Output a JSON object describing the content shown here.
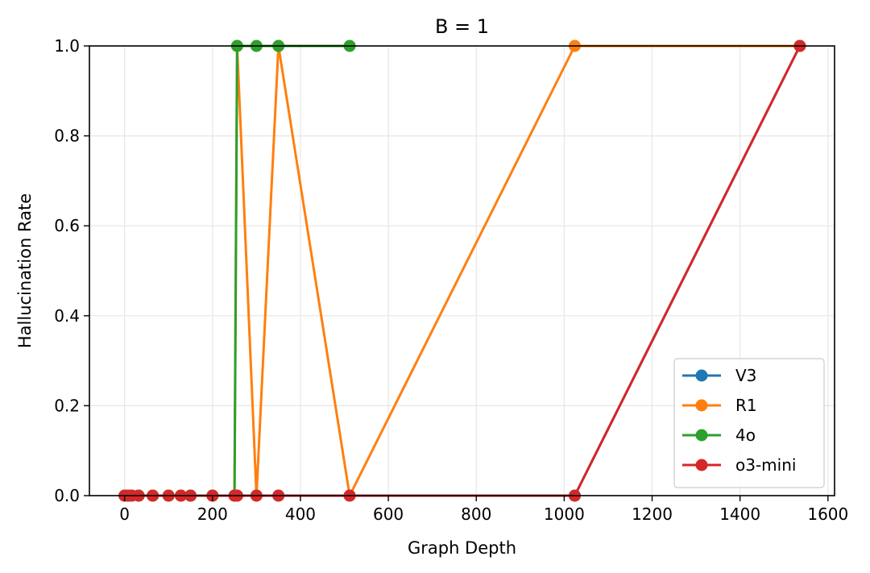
{
  "chart_data": {
    "type": "line",
    "title": "B = 1",
    "xlabel": "Graph Depth",
    "ylabel": "Hallucination Rate",
    "xlim": [
      -80,
      1615
    ],
    "ylim": [
      0.0,
      1.0
    ],
    "xticks": [
      0,
      200,
      400,
      600,
      800,
      1000,
      1200,
      1400,
      1600
    ],
    "yticks": [
      0.0,
      0.2,
      0.4,
      0.6,
      0.8,
      1.0
    ],
    "ytick_labels": [
      "0.0",
      "0.2",
      "0.4",
      "0.6",
      "0.8",
      "1.0"
    ],
    "grid": true,
    "legend_position": "lower-right",
    "series": [
      {
        "name": "V3",
        "color": "#1f77b4",
        "x": [
          0,
          8,
          16,
          32,
          64,
          100,
          128,
          150,
          200,
          250,
          256,
          300,
          350,
          512,
          1024,
          1536
        ],
        "y": [
          0,
          0,
          0,
          0,
          0,
          0,
          0,
          0,
          0,
          0,
          0,
          0,
          0,
          0,
          0,
          1
        ]
      },
      {
        "name": "R1",
        "color": "#ff7f0e",
        "x": [
          0,
          8,
          16,
          32,
          64,
          100,
          128,
          150,
          200,
          250,
          256,
          300,
          350,
          512,
          1024,
          1536
        ],
        "y": [
          0,
          0,
          0,
          0,
          0,
          0,
          0,
          0,
          0,
          0,
          1,
          0,
          1,
          0,
          1,
          1
        ]
      },
      {
        "name": "4o",
        "color": "#2ca02c",
        "x": [
          0,
          8,
          16,
          32,
          64,
          100,
          128,
          150,
          200,
          250,
          256,
          300,
          350,
          512
        ],
        "y": [
          0,
          0,
          0,
          0,
          0,
          0,
          0,
          0,
          0,
          0,
          1,
          1,
          1,
          1
        ]
      },
      {
        "name": "o3-mini",
        "color": "#d62728",
        "x": [
          0,
          8,
          16,
          32,
          64,
          100,
          128,
          150,
          200,
          250,
          256,
          300,
          350,
          512,
          1024,
          1536
        ],
        "y": [
          0,
          0,
          0,
          0,
          0,
          0,
          0,
          0,
          0,
          0,
          0,
          0,
          0,
          0,
          0,
          1
        ]
      }
    ]
  }
}
